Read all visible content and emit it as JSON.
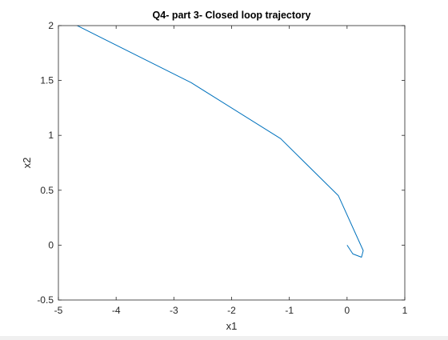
{
  "chart_data": {
    "type": "line",
    "title": "Q4- part 3- Closed loop trajectory",
    "xlabel": "x1",
    "ylabel": "x2",
    "xlim": [
      -5,
      1
    ],
    "ylim": [
      -0.5,
      2
    ],
    "xticks": [
      -5,
      -4,
      -3,
      -2,
      -1,
      0,
      1
    ],
    "yticks": [
      -0.5,
      0,
      0.5,
      1,
      1.5,
      2
    ],
    "xtick_labels": [
      "-5",
      "-4",
      "-3",
      "-2",
      "-1",
      "0",
      "1"
    ],
    "ytick_labels": [
      "-0.5",
      "0",
      "0.5",
      "1",
      "1.5",
      "2"
    ],
    "grid": false,
    "series": [
      {
        "color": "#0072bd",
        "x": [
          -4.75,
          -2.7,
          -1.15,
          -0.15,
          0.28,
          0.25,
          0.1,
          0.0
        ],
        "y": [
          2.02,
          1.48,
          0.97,
          0.45,
          -0.05,
          -0.11,
          -0.08,
          0.0
        ]
      }
    ]
  }
}
